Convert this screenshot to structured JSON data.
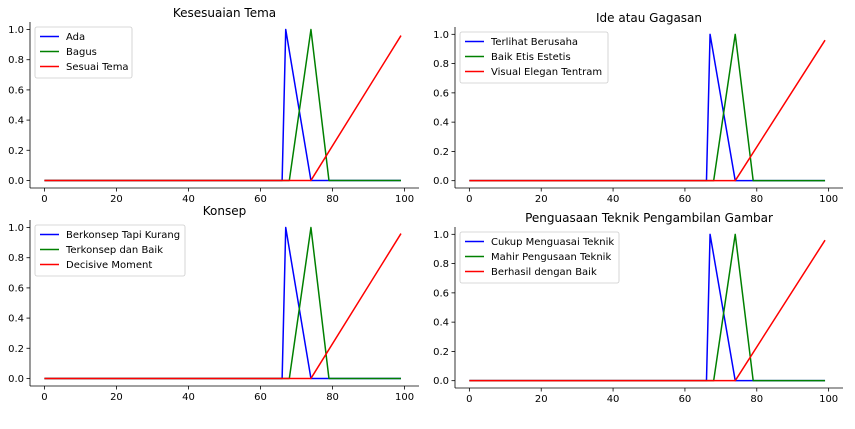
{
  "chart_data": [
    {
      "type": "line",
      "title": "Kesesuaian Tema",
      "xlim": [
        -4,
        104
      ],
      "ylim": [
        -0.05,
        1.05
      ],
      "xticks": [
        0,
        20,
        40,
        60,
        80,
        100
      ],
      "yticks": [
        0.0,
        0.2,
        0.4,
        0.6,
        0.8,
        1.0
      ],
      "xtick_labels": [
        "0",
        "20",
        "40",
        "60",
        "80",
        "100"
      ],
      "ytick_labels": [
        "0.0",
        "0.2",
        "0.4",
        "0.6",
        "0.8",
        "1.0"
      ],
      "grid": false,
      "legend": "upper-left",
      "series": [
        {
          "name": "Ada",
          "color": "#0000ff",
          "points": [
            [
              0,
              0
            ],
            [
              66,
              0
            ],
            [
              67,
              1
            ],
            [
              74,
              0
            ],
            [
              99,
              0
            ]
          ]
        },
        {
          "name": "Bagus",
          "color": "#008000",
          "points": [
            [
              0,
              0
            ],
            [
              68,
              0
            ],
            [
              74,
              1
            ],
            [
              79,
              0
            ],
            [
              99,
              0
            ]
          ]
        },
        {
          "name": "Sesuai Tema",
          "color": "#ff0000",
          "points": [
            [
              0,
              0
            ],
            [
              74,
              0
            ],
            [
              99,
              0.96
            ]
          ]
        }
      ]
    },
    {
      "type": "line",
      "title": "Ide atau Gagasan",
      "xlim": [
        -4,
        104
      ],
      "ylim": [
        -0.05,
        1.05
      ],
      "xticks": [
        0,
        20,
        40,
        60,
        80,
        100
      ],
      "yticks": [
        0.0,
        0.2,
        0.4,
        0.6,
        0.8,
        1.0
      ],
      "xtick_labels": [
        "0",
        "20",
        "40",
        "60",
        "80",
        "100"
      ],
      "ytick_labels": [
        "0.0",
        "0.2",
        "0.4",
        "0.6",
        "0.8",
        "1.0"
      ],
      "grid": false,
      "legend": "upper-left",
      "series": [
        {
          "name": "Terlihat Berusaha",
          "color": "#0000ff",
          "points": [
            [
              0,
              0
            ],
            [
              66,
              0
            ],
            [
              67,
              1
            ],
            [
              74,
              0
            ],
            [
              99,
              0
            ]
          ]
        },
        {
          "name": "Baik Etis Estetis",
          "color": "#008000",
          "points": [
            [
              0,
              0
            ],
            [
              68,
              0
            ],
            [
              74,
              1
            ],
            [
              79,
              0
            ],
            [
              99,
              0
            ]
          ]
        },
        {
          "name": "Visual Elegan Tentram",
          "color": "#ff0000",
          "points": [
            [
              0,
              0
            ],
            [
              74,
              0
            ],
            [
              99,
              0.96
            ]
          ]
        }
      ]
    },
    {
      "type": "line",
      "title": "Konsep",
      "xlim": [
        -4,
        104
      ],
      "ylim": [
        -0.05,
        1.05
      ],
      "xticks": [
        0,
        20,
        40,
        60,
        80,
        100
      ],
      "yticks": [
        0.0,
        0.2,
        0.4,
        0.6,
        0.8,
        1.0
      ],
      "xtick_labels": [
        "0",
        "20",
        "40",
        "60",
        "80",
        "100"
      ],
      "ytick_labels": [
        "0.0",
        "0.2",
        "0.4",
        "0.6",
        "0.8",
        "1.0"
      ],
      "grid": false,
      "legend": "upper-left",
      "series": [
        {
          "name": "Berkonsep Tapi Kurang",
          "color": "#0000ff",
          "points": [
            [
              0,
              0
            ],
            [
              66,
              0
            ],
            [
              67,
              1
            ],
            [
              74,
              0
            ],
            [
              99,
              0
            ]
          ]
        },
        {
          "name": "Terkonsep dan Baik",
          "color": "#008000",
          "points": [
            [
              0,
              0
            ],
            [
              68,
              0
            ],
            [
              74,
              1
            ],
            [
              79,
              0
            ],
            [
              99,
              0
            ]
          ]
        },
        {
          "name": "Decisive Moment",
          "color": "#ff0000",
          "points": [
            [
              0,
              0
            ],
            [
              74,
              0
            ],
            [
              99,
              0.96
            ]
          ]
        }
      ]
    },
    {
      "type": "line",
      "title": "Penguasaan Teknik Pengambilan Gambar",
      "xlim": [
        -4,
        104
      ],
      "ylim": [
        -0.05,
        1.05
      ],
      "xticks": [
        0,
        20,
        40,
        60,
        80,
        100
      ],
      "yticks": [
        0.0,
        0.2,
        0.4,
        0.6,
        0.8,
        1.0
      ],
      "xtick_labels": [
        "0",
        "20",
        "40",
        "60",
        "80",
        "100"
      ],
      "ytick_labels": [
        "0.0",
        "0.2",
        "0.4",
        "0.6",
        "0.8",
        "1.0"
      ],
      "grid": false,
      "legend": "upper-left",
      "series": [
        {
          "name": "Cukup Menguasai Teknik",
          "color": "#0000ff",
          "points": [
            [
              0,
              0
            ],
            [
              66,
              0
            ],
            [
              67,
              1
            ],
            [
              74,
              0
            ],
            [
              99,
              0
            ]
          ]
        },
        {
          "name": "Mahir Pengusaan Teknik",
          "color": "#008000",
          "points": [
            [
              0,
              0
            ],
            [
              68,
              0
            ],
            [
              74,
              1
            ],
            [
              79,
              0
            ],
            [
              99,
              0
            ]
          ]
        },
        {
          "name": "Berhasil dengan Baik",
          "color": "#ff0000",
          "points": [
            [
              0,
              0
            ],
            [
              74,
              0
            ],
            [
              99,
              0.96
            ]
          ]
        }
      ]
    }
  ]
}
